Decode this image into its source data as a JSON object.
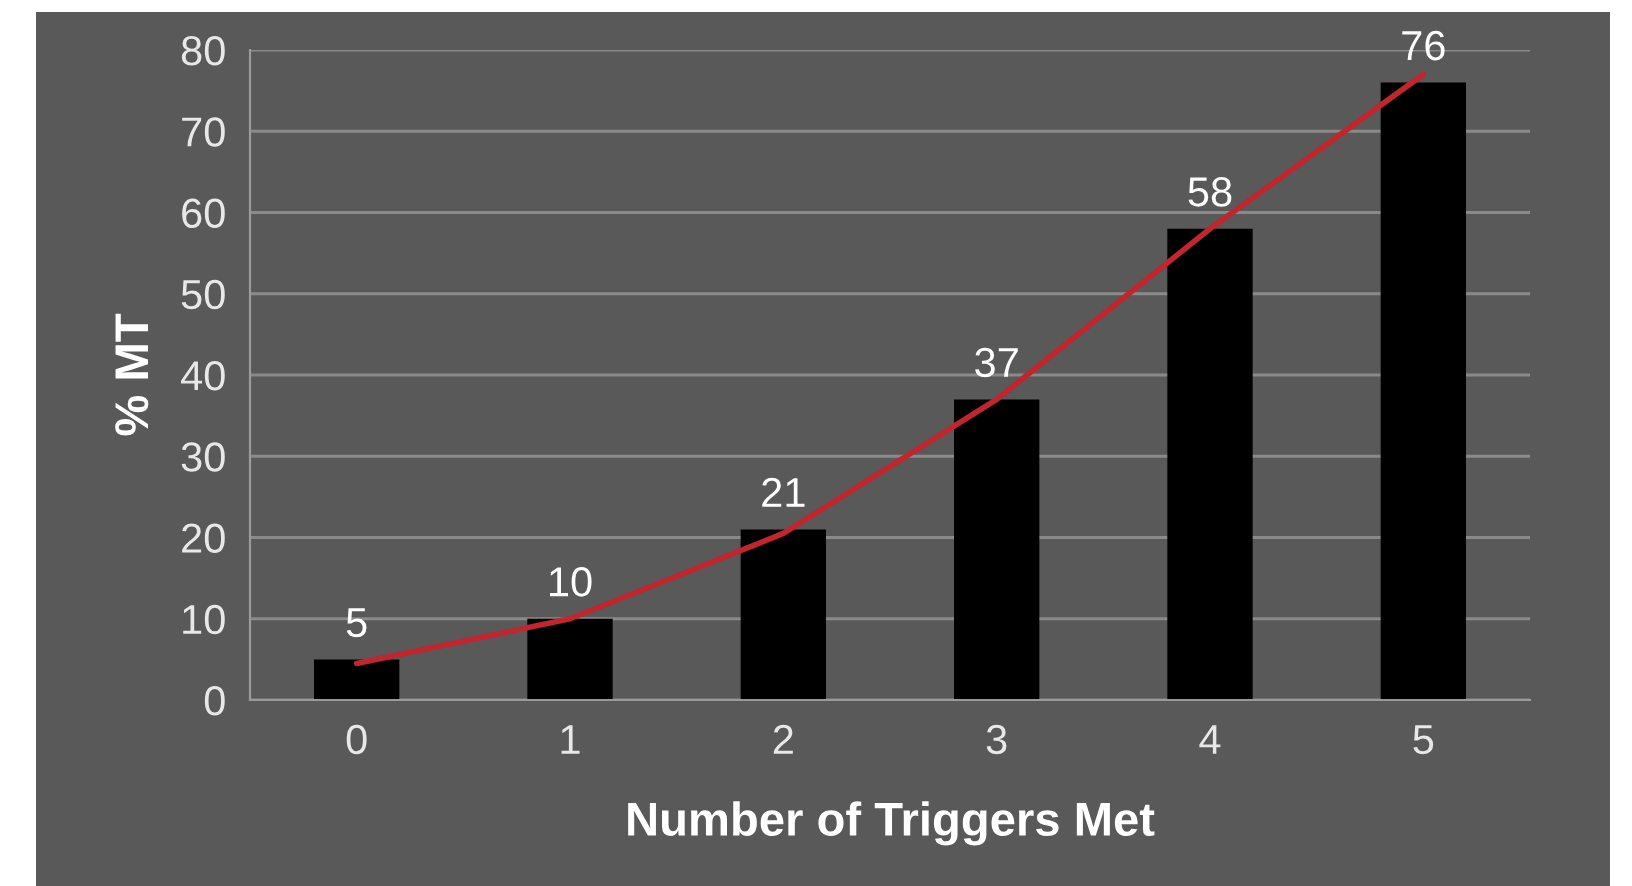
{
  "chart_data": {
    "type": "bar",
    "xlabel": "Number of Triggers Met",
    "ylabel": "% MT",
    "categories": [
      "0",
      "1",
      "2",
      "3",
      "4",
      "5"
    ],
    "series": [
      {
        "color": "#000000",
        "values": [
          5,
          10,
          21,
          37,
          58,
          76
        ],
        "value_labels": [
          "5",
          "10",
          "21",
          "37",
          "58",
          "76"
        ]
      },
      {
        "type": "line",
        "color": "#c0262d",
        "values": [
          4.5,
          10,
          20.5,
          37,
          58,
          77
        ]
      }
    ],
    "ylim": [
      0,
      80
    ],
    "yticks": [
      0,
      10,
      20,
      30,
      40,
      50,
      60,
      70,
      80
    ],
    "grid": "y",
    "legend": false
  }
}
